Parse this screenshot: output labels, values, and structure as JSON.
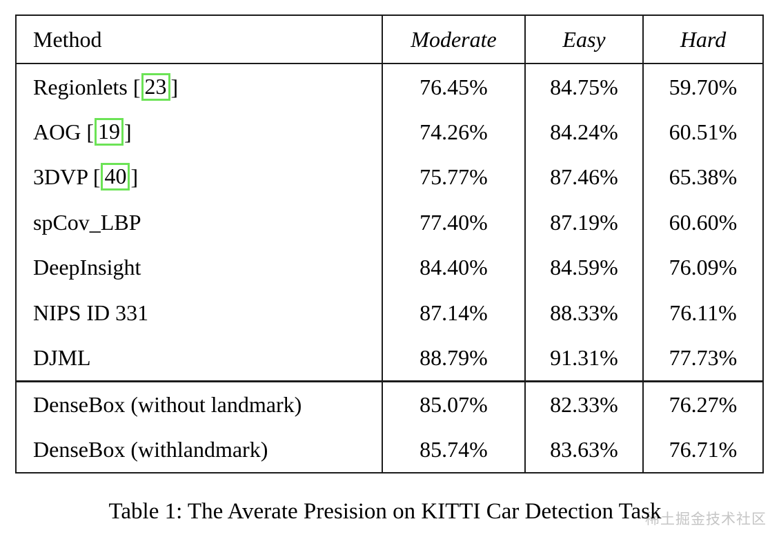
{
  "table": {
    "columns": [
      "Method",
      "Moderate",
      "Easy",
      "Hard"
    ],
    "rows": [
      {
        "method": "Regionlets",
        "citation": "23",
        "values": [
          "76.45%",
          "84.75%",
          "59.70%"
        ],
        "section": 1
      },
      {
        "method": "AOG",
        "citation": "19",
        "values": [
          "74.26%",
          "84.24%",
          "60.51%"
        ],
        "section": 1
      },
      {
        "method": "3DVP",
        "citation": "40",
        "values": [
          "75.77%",
          "87.46%",
          "65.38%"
        ],
        "section": 1
      },
      {
        "method": "spCov_LBP",
        "citation": null,
        "values": [
          "77.40%",
          "87.19%",
          "60.60%"
        ],
        "section": 1
      },
      {
        "method": "DeepInsight",
        "citation": null,
        "values": [
          "84.40%",
          "84.59%",
          "76.09%"
        ],
        "section": 1
      },
      {
        "method": "NIPS ID 331",
        "citation": null,
        "values": [
          "87.14%",
          "88.33%",
          "76.11%"
        ],
        "section": 1
      },
      {
        "method": "DJML",
        "citation": null,
        "values": [
          "88.79%",
          "91.31%",
          "77.73%"
        ],
        "section": 1
      },
      {
        "method": "DenseBox (without landmark)",
        "citation": null,
        "values": [
          "85.07%",
          "82.33%",
          "76.27%"
        ],
        "section": 2
      },
      {
        "method": "DenseBox (withlandmark)",
        "citation": null,
        "values": [
          "85.74%",
          "83.63%",
          "76.71%"
        ],
        "section": 2
      }
    ]
  },
  "caption": "Table 1: The Averate Presision on KITTI Car Detection Task",
  "watermark": {
    "text": "稀土掘金技术社区"
  },
  "colors": {
    "citation_box": "#6ce356",
    "table_border": "#1b1b1b",
    "text": "#000000",
    "watermark": "#c5c5c5"
  }
}
